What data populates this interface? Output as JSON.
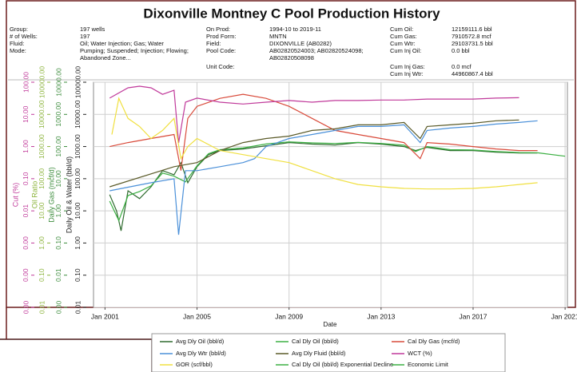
{
  "chart_data": {
    "type": "line",
    "title": "Dixonville Montney C Pool Production History",
    "xlabel": "Date",
    "log": true,
    "grid": true,
    "xlim": [
      2000.5,
      2021.1
    ],
    "xticks": [
      {
        "value": 2001,
        "label": "Jan 2001"
      },
      {
        "value": 2005,
        "label": "Jan 2005"
      },
      {
        "value": 2009,
        "label": "Jan 2009"
      },
      {
        "value": 2013,
        "label": "Jan 2013"
      },
      {
        "value": 2017,
        "label": "Jan 2017"
      },
      {
        "value": 2021,
        "label": "Jan 2021"
      }
    ],
    "axes": [
      {
        "label": "Cut (%)",
        "color": "#c0399a",
        "ylim": [
          1e-05,
          100
        ],
        "yticks": [
          {
            "value": 1e-05,
            "label": "0.00"
          },
          {
            "value": 0.0001,
            "label": "0.00"
          },
          {
            "value": 0.001,
            "label": "0.00"
          },
          {
            "value": 0.01,
            "label": "0.01"
          },
          {
            "value": 0.1,
            "label": "0.10"
          },
          {
            "value": 1,
            "label": "1.00"
          },
          {
            "value": 10,
            "label": "10.00"
          },
          {
            "value": 100,
            "label": "100.00"
          }
        ]
      },
      {
        "label": "Oil Ratio",
        "color": "#8cb43c",
        "ylim": [
          0.01,
          100000
        ],
        "yticks": [
          {
            "value": 0.01,
            "label": "0.01"
          },
          {
            "value": 0.1,
            "label": "0.10"
          },
          {
            "value": 1,
            "label": "1.00"
          },
          {
            "value": 10,
            "label": "10.00"
          },
          {
            "value": 100,
            "label": "100.00"
          },
          {
            "value": 1000,
            "label": "1000.00"
          },
          {
            "value": 10000,
            "label": "10000.00"
          },
          {
            "value": 100000,
            "label": "100000.00"
          }
        ]
      },
      {
        "label": "Daily Gas (mcf/d)",
        "color": "#3c8c3c",
        "ylim": [
          0.001,
          10000
        ],
        "yticks": [
          {
            "value": 0.001,
            "label": "0.00"
          },
          {
            "value": 0.01,
            "label": "0.01"
          },
          {
            "value": 0.1,
            "label": "0.10"
          },
          {
            "value": 1,
            "label": "1.00"
          },
          {
            "value": 10,
            "label": "10.00"
          },
          {
            "value": 100,
            "label": "100.00"
          },
          {
            "value": 1000,
            "label": "1000.00"
          },
          {
            "value": 10000,
            "label": "10000.00"
          }
        ]
      },
      {
        "label": "Daily Oil & Water (bbl/d)",
        "color": "#222222",
        "ylim": [
          0.01,
          100000
        ],
        "yticks": [
          {
            "value": 0.01,
            "label": "0.01"
          },
          {
            "value": 0.1,
            "label": "0.10"
          },
          {
            "value": 1,
            "label": "1.00"
          },
          {
            "value": 10,
            "label": "10.00"
          },
          {
            "value": 100,
            "label": "100.00"
          },
          {
            "value": 1000,
            "label": "1000.00"
          },
          {
            "value": 10000,
            "label": "10000.00"
          },
          {
            "value": 100000,
            "label": "100000.00"
          }
        ]
      }
    ],
    "series": [
      {
        "name": "Avg Dly Oil (bbl/d)",
        "color": "#2f6b2f",
        "axis": 3,
        "x": [
          2001.2,
          2001.5,
          2001.7,
          2002,
          2002.5,
          2003,
          2003.5,
          2004,
          2004.3,
          2004.6,
          2005,
          2005.5,
          2006,
          2007,
          2008,
          2009,
          2010,
          2011,
          2012,
          2013,
          2014,
          2014.5,
          2015,
          2016,
          2017,
          2018,
          2019,
          2019.8
        ],
        "values": [
          32,
          10,
          2.4,
          42,
          24,
          56,
          178,
          133,
          316,
          75,
          237,
          562,
          750,
          840,
          1060,
          1330,
          1190,
          1120,
          1330,
          1190,
          1000,
          750,
          944,
          750,
          750,
          668,
          631,
          631
        ]
      },
      {
        "name": "Cal Dly Oil (bbl/d)",
        "color": "#3cb043",
        "axis": 3,
        "x": [
          2001.2,
          2001.6,
          2002,
          2002.5,
          2003,
          2003.5,
          2004,
          2004.5,
          2005,
          2005.5,
          2006,
          2007,
          2008,
          2009,
          2010,
          2011,
          2012,
          2013,
          2014,
          2014.5,
          2015,
          2016,
          2017,
          2018,
          2019,
          2019.8
        ],
        "values": [
          20,
          5,
          30,
          40,
          60,
          150,
          120,
          80,
          250,
          600,
          800,
          900,
          1200,
          1400,
          1300,
          1250,
          1350,
          1250,
          1100,
          700,
          1000,
          800,
          780,
          700,
          650,
          640
        ]
      },
      {
        "name": "Cal Dly Gas (mcf/d)",
        "color": "#d94a3a",
        "axis": 2,
        "x": [
          2001.2,
          2002,
          2003,
          2004,
          2004.3,
          2004.6,
          2005,
          2006,
          2007,
          2008,
          2009,
          2010,
          2011,
          2012,
          2013,
          2014,
          2014.7,
          2015,
          2016,
          2017,
          2018,
          2019,
          2019.8
        ],
        "values": [
          100,
          133,
          178,
          237,
          18,
          750,
          1780,
          3160,
          4220,
          3160,
          1780,
          750,
          316,
          237,
          178,
          133,
          42,
          133,
          119,
          100,
          84,
          75,
          75
        ]
      },
      {
        "name": "Avg Dly Wtr (bbl/d)",
        "color": "#4a90d9",
        "axis": 3,
        "x": [
          2001.2,
          2003,
          2004,
          2004.2,
          2004.5,
          2005,
          2006,
          2007,
          2007.5,
          2008,
          2009,
          2010,
          2011,
          2012,
          2013,
          2014,
          2014.7,
          2015,
          2016,
          2017,
          2018,
          2019,
          2019.8
        ],
        "values": [
          42,
          75,
          100,
          1.8,
          178,
          178,
          237,
          316,
          422,
          1000,
          1780,
          2370,
          3160,
          4220,
          4220,
          4730,
          1330,
          3160,
          3760,
          4220,
          5010,
          5620,
          6310
        ]
      },
      {
        "name": "Avg Dly Fluid (bbl/d)",
        "color": "#5a5a28",
        "axis": 3,
        "x": [
          2001.2,
          2004,
          2005,
          2006,
          2007,
          2008,
          2009,
          2010,
          2011,
          2012,
          2013,
          2014,
          2014.7,
          2015,
          2016,
          2017,
          2018,
          2019
        ],
        "values": [
          56,
          237,
          316,
          750,
          1330,
          1780,
          2110,
          3160,
          3550,
          4730,
          4730,
          5620,
          1780,
          4220,
          4730,
          5310,
          6310,
          6680
        ]
      },
      {
        "name": "WCT (%)",
        "color": "#c0399a",
        "axis": 0,
        "x": [
          2001.2,
          2002,
          2002.5,
          2003,
          2003.5,
          2004,
          2004.2,
          2004.5,
          2005,
          2006,
          2007,
          2008,
          2009,
          2010,
          2011,
          2012,
          2013,
          2014,
          2015,
          2016,
          2017,
          2018,
          2019
        ],
        "values": [
          32,
          67,
          75,
          67,
          42,
          56,
          1.3,
          24,
          32,
          24,
          21,
          24,
          27,
          24,
          27,
          27,
          28,
          28,
          30,
          30,
          30,
          32,
          33
        ]
      },
      {
        "name": "GOR (scf/bbl)",
        "color": "#f0e040",
        "axis": 1,
        "x": [
          2001.3,
          2001.6,
          2002,
          2002.5,
          2003,
          2003.5,
          2004,
          2004.3,
          2004.6,
          2005,
          2006,
          2007,
          2008,
          2009,
          2010,
          2011,
          2012,
          2013,
          2014,
          2015,
          2016,
          2017,
          2018,
          2019,
          2019.8
        ],
        "values": [
          2370,
          31600,
          7500,
          4220,
          1780,
          3160,
          7500,
          422,
          1000,
          1780,
          750,
          562,
          422,
          316,
          178,
          100,
          66,
          56,
          50,
          48,
          48,
          50,
          56,
          66,
          75
        ]
      },
      {
        "name": "Cal Dly Oil (bbl/d) Exponential Decline",
        "color": "#3cb043",
        "axis": 3,
        "x": [
          2019.8,
          2021
        ],
        "values": [
          640,
          500
        ]
      },
      {
        "name": "Economic Limit",
        "color": "#3cb043",
        "axis": 3,
        "x": [],
        "values": []
      }
    ]
  },
  "info": {
    "columns": [
      [
        {
          "label": "Group:",
          "value": [
            "197 wells"
          ]
        },
        {
          "label": "# of Wells:",
          "value": [
            "197"
          ]
        },
        {
          "label": "Fluid:",
          "value": [
            "Oil; Water Injection; Gas; Water"
          ]
        },
        {
          "label": "Mode:",
          "value": [
            "Pumping; Suspended; Injection; Flowing;",
            "Abandoned Zone..."
          ]
        }
      ],
      [
        {
          "label": "On Prod:",
          "value": [
            "1994-10 to 2019-11"
          ]
        },
        {
          "label": "Prod Form:",
          "value": [
            "MNTN"
          ]
        },
        {
          "label": "Field:",
          "value": [
            "DIXONVILLE (AB0282)"
          ]
        },
        {
          "label": "Pool Code:",
          "value": [
            "AB02820524003; AB02820524098;",
            "AB02820508098"
          ]
        },
        {
          "label": "Unit Code:",
          "value": []
        }
      ],
      [
        {
          "label": "Cum Oil:",
          "value": [
            "12159111.6 bbl"
          ]
        },
        {
          "label": "Cum Gas:",
          "value": [
            "7910572.8 mcf"
          ]
        },
        {
          "label": "Cum Wtr:",
          "value": [
            "29103731.5 bbl"
          ]
        },
        {
          "label": "Cum Inj Oil:",
          "value": [
            "0.0 bbl"
          ]
        },
        {
          "label": "Cum Inj Gas:",
          "value": [
            "0.0 mcf"
          ]
        },
        {
          "label": "Cum Inj Wtr:",
          "value": [
            "44960867.4 bbl"
          ]
        }
      ]
    ]
  }
}
